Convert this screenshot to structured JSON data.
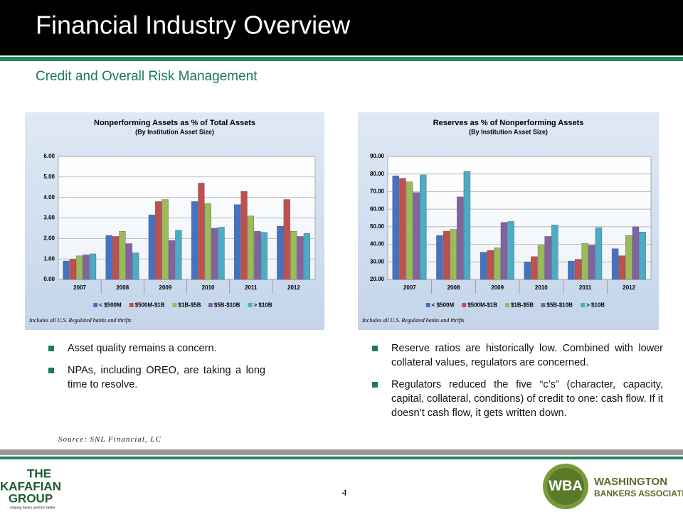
{
  "header": {
    "title": "Financial Industry Overview",
    "subtitle": "Credit and Overall Risk Management"
  },
  "chart_data": [
    {
      "type": "bar",
      "title": "Nonperforming Assets as % of Total Assets",
      "subtitle": "(By Institution Asset Size)",
      "categories": [
        "2007",
        "2008",
        "2009",
        "2010",
        "2011",
        "2012"
      ],
      "series": [
        {
          "name": "< $500M",
          "color": "#4472c4",
          "values": [
            0.9,
            2.15,
            3.15,
            3.8,
            3.65,
            2.6
          ]
        },
        {
          "name": "$500M-$1B",
          "color": "#c0504d",
          "values": [
            1.0,
            2.1,
            3.8,
            4.7,
            4.3,
            3.9
          ]
        },
        {
          "name": "$1B-$5B",
          "color": "#9bbb59",
          "values": [
            1.15,
            2.35,
            3.9,
            3.7,
            3.1,
            2.35
          ]
        },
        {
          "name": "$5B-$10B",
          "color": "#8064a2",
          "values": [
            1.2,
            1.75,
            1.9,
            2.5,
            2.35,
            2.1
          ]
        },
        {
          "name": "> $10B",
          "color": "#4bacc6",
          "values": [
            1.25,
            1.3,
            2.4,
            2.55,
            2.3,
            2.25
          ]
        }
      ],
      "ylim": [
        0,
        6
      ],
      "yticks": [
        {
          "value": 0,
          "label": "0.00"
        },
        {
          "value": 1,
          "label": "1.00"
        },
        {
          "value": 2,
          "label": "2.00"
        },
        {
          "value": 3,
          "label": "3.00"
        },
        {
          "value": 4,
          "label": "4.00"
        },
        {
          "value": 5,
          "label": "5.00"
        },
        {
          "value": 6,
          "label": "6.00"
        }
      ],
      "grid": true,
      "legend": "bottom",
      "note": "Includes all U.S. Regulated banks and thrifts"
    },
    {
      "type": "bar",
      "title": "Reserves as % of Nonperforming Assets",
      "subtitle": "(By Institution Asset Size)",
      "categories": [
        "2007",
        "2008",
        "2009",
        "2010",
        "2011",
        "2012"
      ],
      "series": [
        {
          "name": "< $500M",
          "color": "#4472c4",
          "values": [
            79,
            45,
            35.5,
            30,
            30.5,
            37.5
          ]
        },
        {
          "name": "$500M-$1B",
          "color": "#c0504d",
          "values": [
            77.5,
            47.5,
            36.5,
            33,
            31.5,
            33.5
          ]
        },
        {
          "name": "$1B-$5B",
          "color": "#9bbb59",
          "values": [
            75.5,
            48.5,
            38,
            39.5,
            40.5,
            45
          ]
        },
        {
          "name": "$5B-$10B",
          "color": "#8064a2",
          "values": [
            69.5,
            67,
            52.5,
            44.5,
            39.5,
            50
          ]
        },
        {
          "name": "> $10B",
          "color": "#4bacc6",
          "values": [
            79.5,
            81.5,
            53,
            51,
            49.5,
            47
          ]
        }
      ],
      "ylim": [
        20,
        90
      ],
      "yticks": [
        {
          "value": 20,
          "label": "20.00"
        },
        {
          "value": 30,
          "label": "30.00"
        },
        {
          "value": 40,
          "label": "40.00"
        },
        {
          "value": 50,
          "label": "50.00"
        },
        {
          "value": 60,
          "label": "60.00"
        },
        {
          "value": 70,
          "label": "70.00"
        },
        {
          "value": 80,
          "label": "80.00"
        },
        {
          "value": 90,
          "label": "90.00"
        }
      ],
      "grid": true,
      "legend": "bottom",
      "note": "Includes all U.S. Regulated banks and thrifts"
    }
  ],
  "bullets_left": [
    "Asset quality remains a concern.",
    "NPAs, including OREO, are taking a long time to resolve."
  ],
  "bullets_right": [
    "Reserve ratios are historically low. Combined with lower collateral values, regulators are concerned.",
    "Regulators reduced the five “c’s” (character, capacity, capital, collateral, conditions) of credit to one: cash flow.  If it doesn’t cash flow, it gets written down."
  ],
  "source": "Source: SNL Financial, LC",
  "page_number": 4,
  "logos": {
    "left": {
      "name_lines": [
        "THE",
        "KAFAFIAN",
        "GROUP"
      ],
      "tagline": "...helping banks perform better"
    },
    "right": {
      "initials": "WBA",
      "name_lines": [
        "WASHINGTON",
        "BANKERS ASSOCIATION"
      ]
    }
  }
}
